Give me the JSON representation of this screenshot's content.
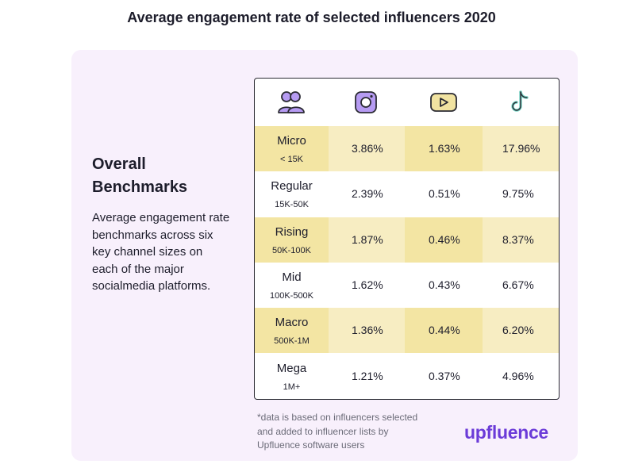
{
  "title": "Average engagement rate of selected influencers 2020",
  "colors": {
    "card_bg": "#f8f0fc",
    "highlight_dark": "#f3e5a3",
    "highlight_light": "#f7edc2",
    "icon_purple": "#b69bf2",
    "icon_yellow": "#f1e3a1",
    "icon_teal": "#78d8c9",
    "brand_purple": "#6b3bd8"
  },
  "sidebar": {
    "heading_line1": "Overall",
    "heading_line2": "Benchmarks",
    "description": "Average engagement rate benchmarks across six key channel sizes on each of the major socialmedia platforms."
  },
  "header_icons": [
    "people-icon",
    "instagram-icon",
    "youtube-icon",
    "tiktok-icon"
  ],
  "chart_data": {
    "type": "table",
    "title": "Average engagement rate of selected influencers 2020",
    "columns": [
      "people-icon",
      "instagram-icon",
      "youtube-icon",
      "tiktok-icon"
    ],
    "rows": [
      {
        "tier": "Micro",
        "range": "< 15K",
        "instagram": "3.86%",
        "youtube": "1.63%",
        "tiktok": "17.96%",
        "highlight": true
      },
      {
        "tier": "Regular",
        "range": "15K-50K",
        "instagram": "2.39%",
        "youtube": "0.51%",
        "tiktok": "9.75%",
        "highlight": false
      },
      {
        "tier": "Rising",
        "range": "50K-100K",
        "instagram": "1.87%",
        "youtube": "0.46%",
        "tiktok": "8.37%",
        "highlight": true
      },
      {
        "tier": "Mid",
        "range": "100K-500K",
        "instagram": "1.62%",
        "youtube": "0.43%",
        "tiktok": "6.67%",
        "highlight": false
      },
      {
        "tier": "Macro",
        "range": "500K-1M",
        "instagram": "1.36%",
        "youtube": "0.44%",
        "tiktok": "6.20%",
        "highlight": true
      },
      {
        "tier": "Mega",
        "range": "1M+",
        "instagram": "1.21%",
        "youtube": "0.37%",
        "tiktok": "4.96%",
        "highlight": false
      }
    ]
  },
  "footnote": "*data is based on influencers selected and added to influencer lists by Upfluence software users",
  "logo": "upfluence"
}
